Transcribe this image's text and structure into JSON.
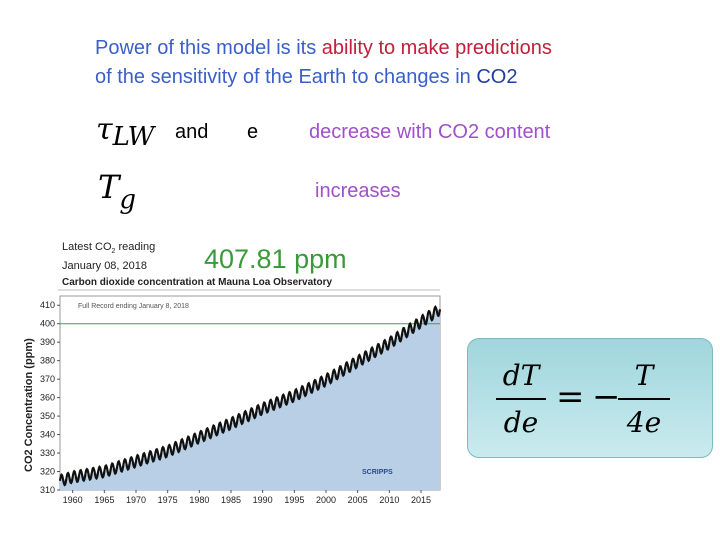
{
  "title": {
    "line1_a": "Power of this model is its ",
    "line1_b": "ability to make predictions",
    "line2_a": "of the sensitivity of the Earth to changes in ",
    "line2_b": "CO2"
  },
  "row1": {
    "symbol": "τ",
    "subscript": "LW",
    "and": "and",
    "e": "e",
    "text": "decrease with CO2 content"
  },
  "row2": {
    "symbol": "T",
    "subscript": "g",
    "text": "increases"
  },
  "chart": {
    "latest_label": "Latest CO",
    "latest_label_sub": "2",
    "latest_label_end": " reading",
    "date": "January 08, 2018",
    "reading": "407.81 ppm",
    "subtitle": "Carbon dioxide concentration at Mauna Loa Observatory",
    "full_record": "Full Record ending January 8, 2018",
    "ylabel": "CO2 Concentration (ppm)",
    "logo": "SCRIPPS"
  },
  "chart_data": {
    "type": "area",
    "title": "Carbon dioxide concentration at Mauna Loa Observatory",
    "xlabel": "",
    "ylabel": "CO2 Concentration (ppm)",
    "xlim": [
      1958,
      2018
    ],
    "ylim": [
      310,
      415
    ],
    "xticks": [
      1960,
      1965,
      1970,
      1975,
      1980,
      1985,
      1990,
      1995,
      2000,
      2005,
      2010,
      2015
    ],
    "yticks": [
      310,
      320,
      330,
      340,
      350,
      360,
      370,
      380,
      390,
      400,
      410
    ],
    "x": [
      1958,
      1960,
      1965,
      1970,
      1975,
      1980,
      1985,
      1990,
      1995,
      2000,
      2005,
      2010,
      2015,
      2018
    ],
    "y": [
      315,
      317,
      320,
      325.5,
      331,
      338.5,
      346,
      354,
      361,
      369.5,
      379.5,
      389.5,
      401,
      407.81
    ],
    "reference_line": 400,
    "colors": {
      "fill": "#b8cfe5",
      "line": "#111111",
      "ref": "#3aa63a"
    }
  },
  "equation": {
    "lhs_num": "dT",
    "lhs_den": "de",
    "eq": "=",
    "minus": "−",
    "rhs_num": "T",
    "rhs_den": "4e"
  }
}
